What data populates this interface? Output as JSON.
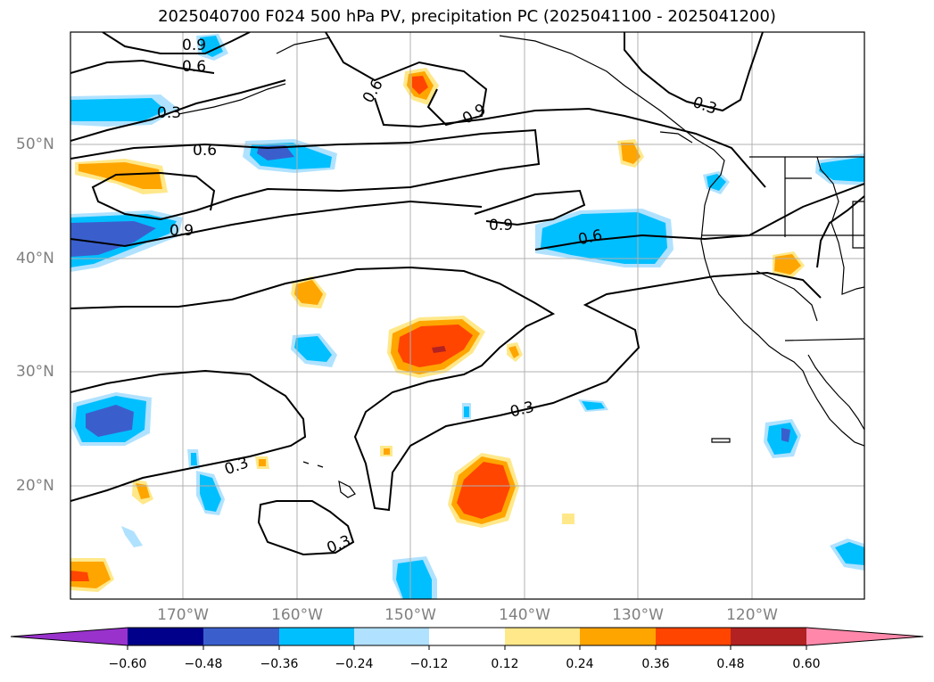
{
  "title": "2025040700 F024 500 hPa PV, precipitation PC (2025041100 - 2025041200)",
  "map": {
    "lon_labels": [
      "170°W",
      "160°W",
      "150°W",
      "140°W",
      "130°W",
      "120°W"
    ],
    "lat_labels": [
      "50°N",
      "40°N",
      "30°N",
      "20°N"
    ],
    "contour_labels": [
      "0.9",
      "0.6",
      "0.3",
      "0.6",
      "0.9",
      "0.3",
      "0.6",
      "0.9",
      "0.9",
      "0.6",
      "0.3",
      "0.3",
      "0.3"
    ]
  },
  "colorbar": {
    "ticks": [
      "−0.60",
      "−0.48",
      "−0.36",
      "−0.24",
      "−0.12",
      "0.12",
      "0.24",
      "0.36",
      "0.48",
      "0.60"
    ],
    "colors": [
      "#9932cc",
      "#00008b",
      "#3a5fcd",
      "#00bfff",
      "#b0e2ff",
      "#ffffff",
      "#ffe88a",
      "#ffa500",
      "#ff4500",
      "#b22222",
      "#ff88aa"
    ]
  }
}
